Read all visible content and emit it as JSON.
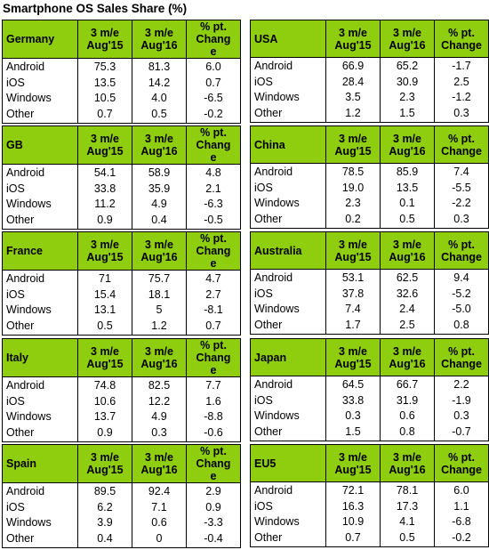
{
  "title": "Smartphone OS Sales Share (%)",
  "columns": {
    "col1": [
      "3 m/e",
      "Aug'15"
    ],
    "col2": [
      "3 m/e",
      "Aug'16"
    ],
    "col3": [
      "% pt.",
      "Chang",
      "e"
    ],
    "col3_alt": [
      "% pt.",
      "Change"
    ]
  },
  "os_names": [
    "Android",
    "iOS",
    "Windows",
    "Other"
  ],
  "regions": [
    {
      "name": "Germany",
      "change_header": "split",
      "aug15": [
        "75.3",
        "13.5",
        "10.5",
        "0.7"
      ],
      "aug16": [
        "81.3",
        "14.2",
        "4.0",
        "0.5"
      ],
      "change": [
        "6.0",
        "0.7",
        "-6.5",
        "-0.2"
      ]
    },
    {
      "name": "USA",
      "change_header": "full",
      "aug15": [
        "66.9",
        "28.4",
        "3.5",
        "1.2"
      ],
      "aug16": [
        "65.2",
        "30.9",
        "2.3",
        "1.5"
      ],
      "change": [
        "-1.7",
        "2.5",
        "-1.2",
        "0.3"
      ]
    },
    {
      "name": "GB",
      "change_header": "split",
      "aug15": [
        "54.1",
        "33.8",
        "11.2",
        "0.9"
      ],
      "aug16": [
        "58.9",
        "35.9",
        "4.9",
        "0.4"
      ],
      "change": [
        "4.8",
        "2.1",
        "-6.3",
        "-0.5"
      ]
    },
    {
      "name": "China",
      "change_header": "full",
      "aug15": [
        "78.5",
        "19.0",
        "2.3",
        "0.2"
      ],
      "aug16": [
        "85.9",
        "13.5",
        "0.1",
        "0.5"
      ],
      "change": [
        "7.4",
        "-5.5",
        "-2.2",
        "0.3"
      ]
    },
    {
      "name": "France",
      "change_header": "split",
      "aug15": [
        "71",
        "15.4",
        "13.1",
        "0.5"
      ],
      "aug16": [
        "75.7",
        "18.1",
        "5",
        "1.2"
      ],
      "change": [
        "4.7",
        "2.7",
        "-8.1",
        "0.7"
      ]
    },
    {
      "name": "Australia",
      "change_header": "full",
      "aug15": [
        "53.1",
        "37.8",
        "7.4",
        "1.7"
      ],
      "aug16": [
        "62.5",
        "32.6",
        "2.4",
        "2.5"
      ],
      "change": [
        "9.4",
        "-5.2",
        "-5.0",
        "0.8"
      ]
    },
    {
      "name": "Italy",
      "change_header": "split",
      "aug15": [
        "74.8",
        "10.6",
        "13.7",
        "0.9"
      ],
      "aug16": [
        "82.5",
        "12.2",
        "4.9",
        "0.3"
      ],
      "change": [
        "7.7",
        "1.6",
        "-8.8",
        "-0.6"
      ]
    },
    {
      "name": "Japan",
      "change_header": "full",
      "aug15": [
        "64.5",
        "33.8",
        "0.3",
        "1.5"
      ],
      "aug16": [
        "66.7",
        "31.9",
        "0.6",
        "0.8"
      ],
      "change": [
        "2.2",
        "-1.9",
        "0.3",
        "-0.7"
      ]
    },
    {
      "name": "Spain",
      "change_header": "split",
      "aug15": [
        "89.5",
        "6.2",
        "3.9",
        "0.4"
      ],
      "aug16": [
        "92.4",
        "7.1",
        "0.6",
        "0"
      ],
      "change": [
        "2.9",
        "0.9",
        "-3.3",
        "-0.4"
      ]
    },
    {
      "name": "EU5",
      "change_header": "full",
      "aug15": [
        "72.1",
        "16.3",
        "10.9",
        "0.7"
      ],
      "aug16": [
        "78.1",
        "17.3",
        "4.1",
        "0.5"
      ],
      "change": [
        "6.0",
        "1.1",
        "-6.8",
        "-0.2"
      ]
    }
  ],
  "colors": {
    "header_green": "#8fce0e",
    "border": "#000000"
  }
}
